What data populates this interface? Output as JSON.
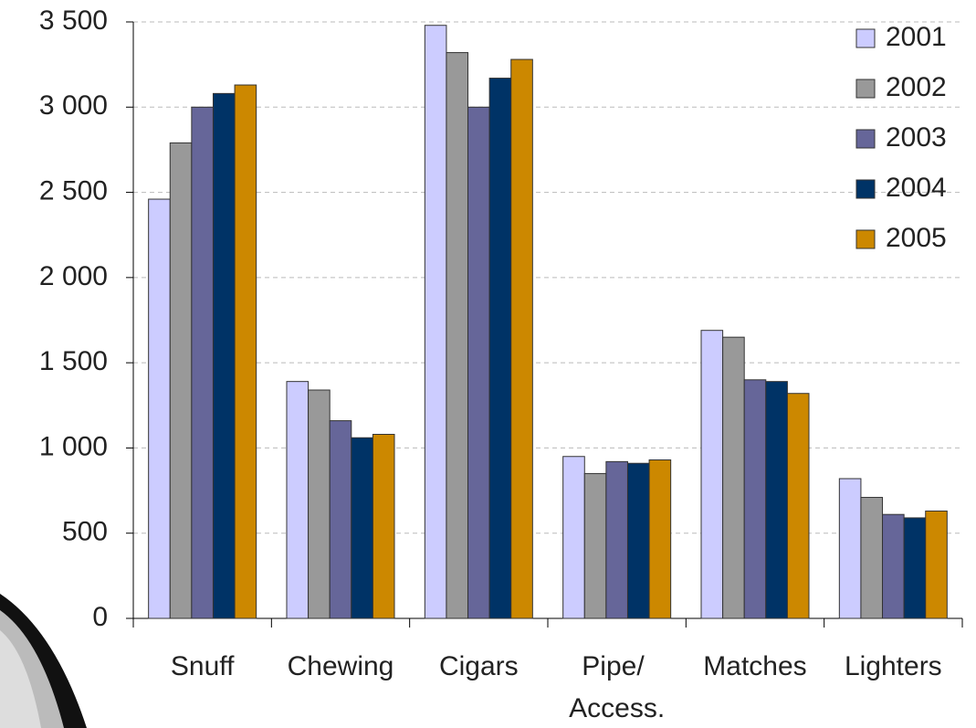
{
  "chart_data": {
    "type": "bar",
    "categories": [
      "Snuff",
      "Chewing",
      "Cigars",
      "Pipe/ Access.",
      "Matches",
      "Lighters"
    ],
    "series": [
      {
        "name": "2001",
        "color": "#ccccff",
        "values": [
          2460,
          1390,
          3480,
          950,
          1690,
          820
        ]
      },
      {
        "name": "2002",
        "color": "#999999",
        "values": [
          2790,
          1340,
          3320,
          850,
          1650,
          710
        ]
      },
      {
        "name": "2003",
        "color": "#666699",
        "values": [
          3000,
          1160,
          3000,
          920,
          1400,
          610
        ]
      },
      {
        "name": "2004",
        "color": "#003366",
        "values": [
          3080,
          1060,
          3170,
          910,
          1390,
          590
        ]
      },
      {
        "name": "2005",
        "color": "#cc8800",
        "values": [
          3130,
          1080,
          3280,
          930,
          1320,
          630
        ]
      }
    ],
    "ylim": [
      0,
      3500
    ],
    "yticks": [
      0,
      {
        "value": 500,
        "label": "500"
      },
      {
        "value": 1000,
        "label": "1 000"
      },
      {
        "value": 1500,
        "label": "1 500"
      },
      {
        "value": 2000,
        "label": "2 000"
      },
      {
        "value": 2500,
        "label": "2 500"
      },
      {
        "value": 3000,
        "label": "3 000"
      },
      {
        "value": 3500,
        "label": "3 500"
      }
    ],
    "grid": true,
    "legend": "top-right"
  }
}
